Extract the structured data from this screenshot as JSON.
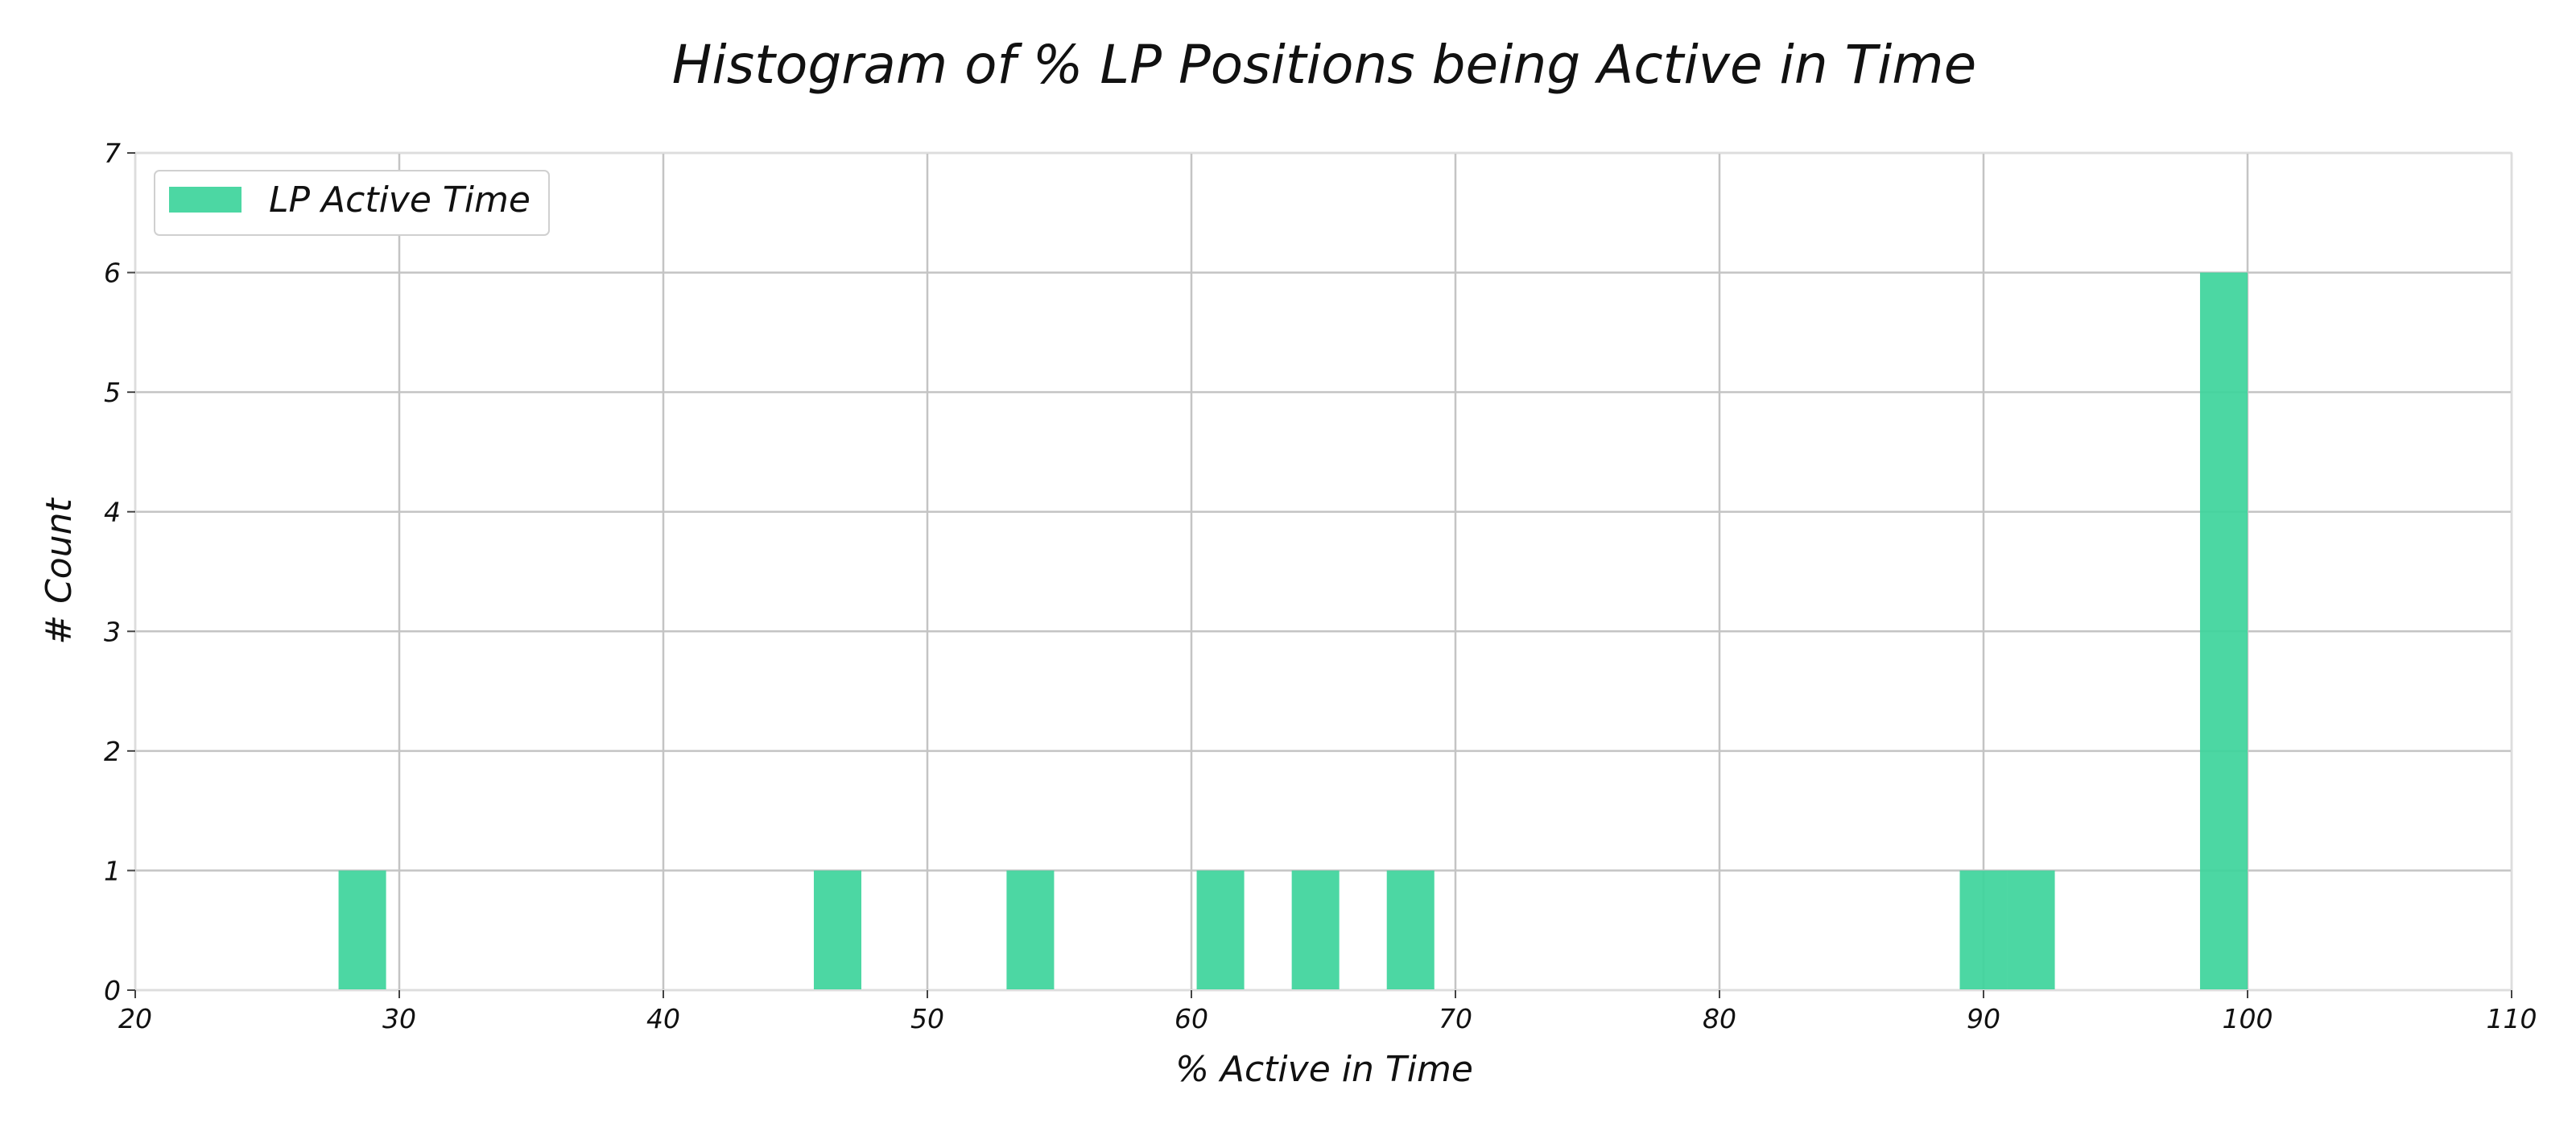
{
  "chart_data": {
    "type": "bar",
    "title": "Histogram of % LP Positions being Active in Time",
    "xlabel": "% Active in Time",
    "ylabel": "# Count",
    "xlim": [
      20,
      110
    ],
    "ylim": [
      0,
      7
    ],
    "xticks": [
      20,
      30,
      40,
      50,
      60,
      70,
      80,
      90,
      100,
      110
    ],
    "yticks": [
      0,
      1,
      2,
      3,
      4,
      5,
      6,
      7
    ],
    "grid": true,
    "legend_position": "top-left",
    "series": [
      {
        "name": "LP Active Time",
        "color": "#3ed49c",
        "bins": [
          {
            "x0": 27.7,
            "x1": 29.5,
            "count": 1
          },
          {
            "x0": 45.7,
            "x1": 47.5,
            "count": 1
          },
          {
            "x0": 53.0,
            "x1": 54.8,
            "count": 1
          },
          {
            "x0": 60.2,
            "x1": 62.0,
            "count": 1
          },
          {
            "x0": 63.8,
            "x1": 65.6,
            "count": 1
          },
          {
            "x0": 67.4,
            "x1": 69.2,
            "count": 1
          },
          {
            "x0": 89.1,
            "x1": 90.9,
            "count": 1
          },
          {
            "x0": 90.9,
            "x1": 92.7,
            "count": 1
          },
          {
            "x0": 98.2,
            "x1": 100.0,
            "count": 6
          }
        ]
      }
    ]
  }
}
